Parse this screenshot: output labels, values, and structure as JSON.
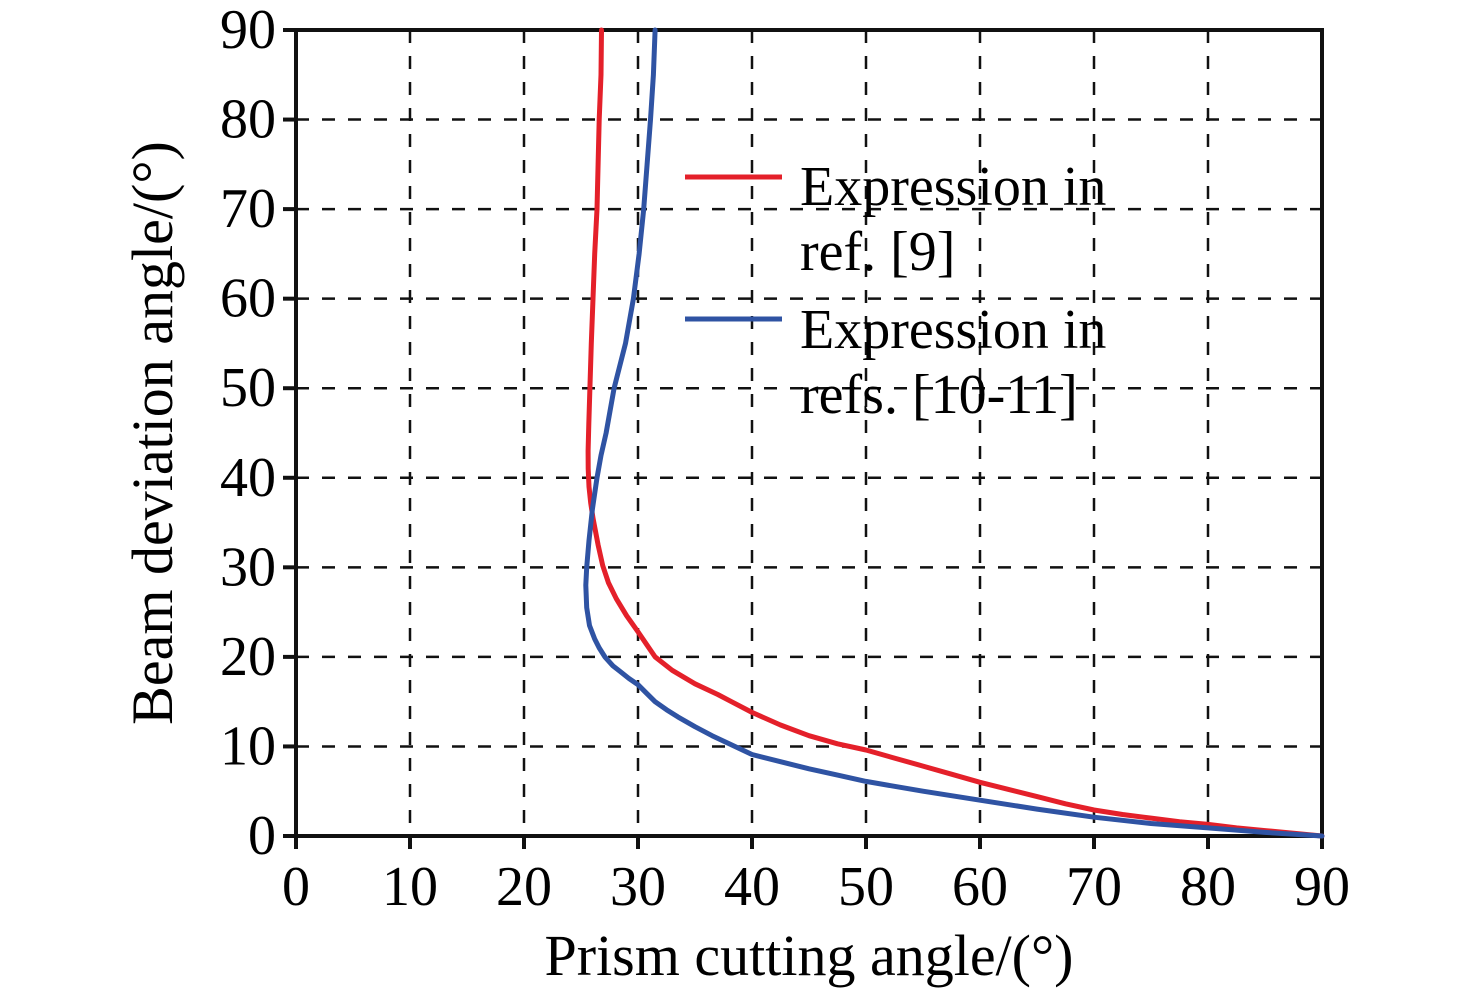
{
  "figure": {
    "background_color": "#ffffff",
    "plot_border_color": "#111111",
    "grid_color": "#111111",
    "grid_style": "dashed"
  },
  "chart_data": {
    "type": "line",
    "title": "",
    "xlabel": "Prism cutting angle/(°)",
    "ylabel": "Beam deviation angle/(°)",
    "xlim": [
      0,
      90
    ],
    "ylim": [
      0,
      90
    ],
    "xticks": [
      0,
      10,
      20,
      30,
      40,
      50,
      60,
      70,
      80,
      90
    ],
    "yticks": [
      0,
      10,
      20,
      30,
      40,
      50,
      60,
      70,
      80,
      90
    ],
    "grid": "dashed, both axes, at every 10 degrees",
    "legend_position": "upper right inside plot, no frame",
    "series": [
      {
        "name": "Expression in ref. [9]",
        "legend_lines": [
          "Expression in",
          "ref. [9]"
        ],
        "color": "#e4202a",
        "points": [
          [
            26.8,
            90
          ],
          [
            26.75,
            85
          ],
          [
            26.6,
            80
          ],
          [
            26.5,
            75
          ],
          [
            26.4,
            70
          ],
          [
            26.2,
            65
          ],
          [
            26.05,
            60
          ],
          [
            25.9,
            55
          ],
          [
            25.78,
            50
          ],
          [
            25.68,
            46
          ],
          [
            25.62,
            43
          ],
          [
            25.63,
            41
          ],
          [
            25.7,
            39
          ],
          [
            25.85,
            37.2
          ],
          [
            26.05,
            35.5
          ],
          [
            26.5,
            32.5
          ],
          [
            26.9,
            30.2
          ],
          [
            27.4,
            28.3
          ],
          [
            28.1,
            26.5
          ],
          [
            29.0,
            24.6
          ],
          [
            30.0,
            22.8
          ],
          [
            30.8,
            21.3
          ],
          [
            31.5,
            20.0
          ],
          [
            33.0,
            18.5
          ],
          [
            35.0,
            17.0
          ],
          [
            37.0,
            15.8
          ],
          [
            38.2,
            15.0
          ],
          [
            40.0,
            13.8
          ],
          [
            42.5,
            12.4
          ],
          [
            45.0,
            11.2
          ],
          [
            47.5,
            10.3
          ],
          [
            50.0,
            9.6
          ],
          [
            52.5,
            8.7
          ],
          [
            55.0,
            7.8
          ],
          [
            57.5,
            6.9
          ],
          [
            60.0,
            6.0
          ],
          [
            62.5,
            5.2
          ],
          [
            65.0,
            4.4
          ],
          [
            67.5,
            3.6
          ],
          [
            70.0,
            2.9
          ],
          [
            72.5,
            2.4
          ],
          [
            75.0,
            2.0
          ],
          [
            77.5,
            1.6
          ],
          [
            80.0,
            1.3
          ],
          [
            82.5,
            0.9
          ],
          [
            85.0,
            0.6
          ],
          [
            87.5,
            0.3
          ],
          [
            90.0,
            0.0
          ]
        ]
      },
      {
        "name": "Expression in refs. [10-11]",
        "legend_lines": [
          "Expression in",
          "refs. [10-11]"
        ],
        "color": "#2f53a3",
        "points": [
          [
            31.5,
            90
          ],
          [
            31.35,
            85
          ],
          [
            31.1,
            80
          ],
          [
            30.8,
            75
          ],
          [
            30.5,
            70
          ],
          [
            30.1,
            65
          ],
          [
            29.6,
            60
          ],
          [
            28.9,
            55
          ],
          [
            27.9,
            50
          ],
          [
            27.2,
            45
          ],
          [
            26.75,
            42.5
          ],
          [
            26.4,
            40
          ],
          [
            26.0,
            36.5
          ],
          [
            25.7,
            33
          ],
          [
            25.5,
            30
          ],
          [
            25.42,
            28
          ],
          [
            25.5,
            25.5
          ],
          [
            25.75,
            23.5
          ],
          [
            26.2,
            22.0
          ],
          [
            26.6,
            21.0
          ],
          [
            27.1,
            20.0
          ],
          [
            27.8,
            19.0
          ],
          [
            28.4,
            18.4
          ],
          [
            29.2,
            17.6
          ],
          [
            30.0,
            16.9
          ],
          [
            30.7,
            16.0
          ],
          [
            31.5,
            15.0
          ],
          [
            32.5,
            14.1
          ],
          [
            33.5,
            13.3
          ],
          [
            35.0,
            12.2
          ],
          [
            36.5,
            11.2
          ],
          [
            38.0,
            10.3
          ],
          [
            40.0,
            9.1
          ],
          [
            42.5,
            8.3
          ],
          [
            45.0,
            7.5
          ],
          [
            47.5,
            6.8
          ],
          [
            50.0,
            6.1
          ],
          [
            55.0,
            5.0
          ],
          [
            60.0,
            4.0
          ],
          [
            65.0,
            3.0
          ],
          [
            70.0,
            2.1
          ],
          [
            75.0,
            1.4
          ],
          [
            80.0,
            0.9
          ],
          [
            85.0,
            0.4
          ],
          [
            90.0,
            0.0
          ]
        ]
      }
    ]
  }
}
